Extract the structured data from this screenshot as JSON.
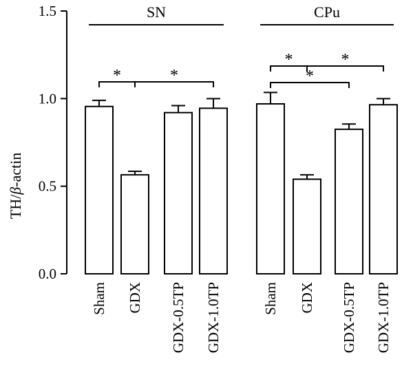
{
  "chart_data": {
    "type": "bar",
    "ylabel_main": "TH/",
    "ylabel_beta": "β",
    "ylabel_tail": "-actin",
    "ylim": [
      0,
      1.5
    ],
    "yticks": [
      "0.0",
      "0.5",
      "1.0",
      "1.5"
    ],
    "ytick_values": [
      0,
      0.5,
      1.0,
      1.5
    ],
    "grid": false,
    "legend": "none",
    "groups": [
      {
        "name": "SN",
        "categories": [
          "Sham",
          "GDX",
          "GDX-0.5TP",
          "GDX-1.0TP"
        ],
        "values": [
          0.955,
          0.565,
          0.92,
          0.945
        ],
        "errors": [
          0.035,
          0.02,
          0.04,
          0.055
        ],
        "significance": [
          {
            "from": 0,
            "to": 1,
            "label": "*"
          },
          {
            "from": 1,
            "to": 3,
            "label": "*"
          }
        ]
      },
      {
        "name": "CPu",
        "categories": [
          "Sham",
          "GDX",
          "GDX-0.5TP",
          "GDX-1.0TP"
        ],
        "values": [
          0.97,
          0.54,
          0.825,
          0.965
        ],
        "errors": [
          0.065,
          0.025,
          0.03,
          0.035
        ],
        "significance": [
          {
            "from": 0,
            "to": 1,
            "label": "*"
          },
          {
            "from": 1,
            "to": 3,
            "label": "*"
          },
          {
            "from": 0,
            "to": 2,
            "label": "*"
          }
        ]
      }
    ]
  }
}
